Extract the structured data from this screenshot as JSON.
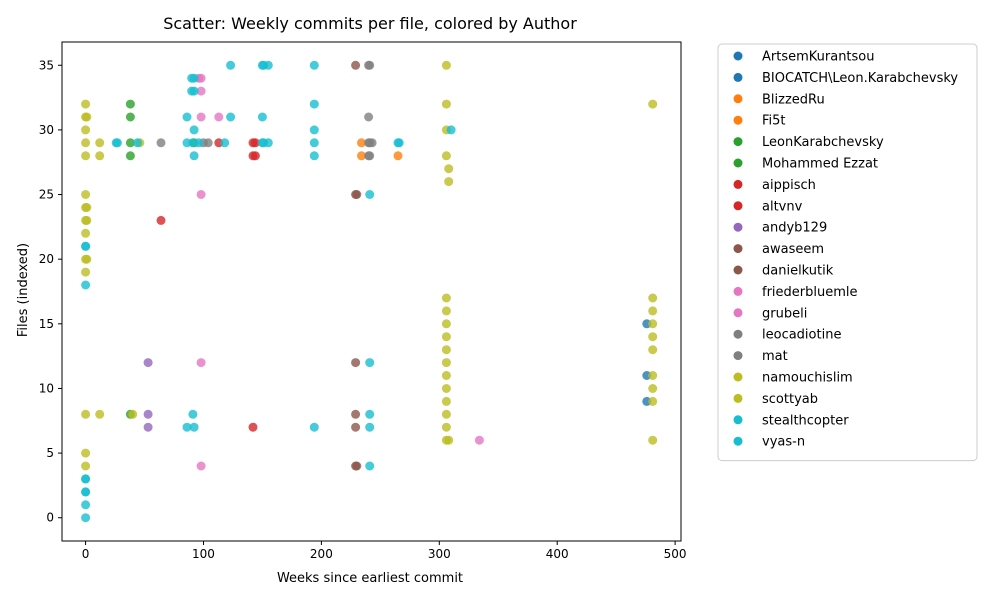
{
  "chart_data": {
    "type": "scatter",
    "title": "Scatter: Weekly commits per file, colored by Author",
    "xlabel": "Weeks since earliest commit",
    "ylabel": "Files (indexed)",
    "xlim": [
      -20,
      505
    ],
    "ylim": [
      -1.8,
      36.8
    ],
    "xticks": [
      0,
      100,
      200,
      300,
      400,
      500
    ],
    "yticks": [
      0,
      5,
      10,
      15,
      20,
      25,
      30,
      35
    ],
    "grid": false,
    "legend_position": "outside-right",
    "series": [
      {
        "name": "ArtsemKurantsou",
        "color": "#1f77b4",
        "points": []
      },
      {
        "name": "BIOCATCH\\Leon.Karabchevsky",
        "color": "#1f77b4",
        "points": [
          [
            476,
            15
          ],
          [
            476,
            11
          ],
          [
            476,
            9
          ]
        ]
      },
      {
        "name": "BlizzedRu",
        "color": "#ff7f0e",
        "points": [
          [
            234,
            29
          ],
          [
            234,
            28
          ]
        ]
      },
      {
        "name": "Fi5t",
        "color": "#ff7f0e",
        "points": [
          [
            265,
            28
          ]
        ]
      },
      {
        "name": "LeonKarabchevsky",
        "color": "#2ca02c",
        "points": [
          [
            38,
            32
          ],
          [
            38,
            31
          ],
          [
            38,
            29
          ],
          [
            38,
            28
          ],
          [
            38,
            8
          ]
        ]
      },
      {
        "name": "Mohammed Ezzat",
        "color": "#2ca02c",
        "points": [
          [
            92,
            29
          ]
        ]
      },
      {
        "name": "aippisch",
        "color": "#d62728",
        "points": [
          [
            142,
            29
          ],
          [
            142,
            28
          ],
          [
            142,
            7
          ],
          [
            64,
            23
          ]
        ]
      },
      {
        "name": "altvnv",
        "color": "#d62728",
        "points": [
          [
            144,
            29
          ],
          [
            144,
            28
          ],
          [
            113,
            29
          ]
        ]
      },
      {
        "name": "andyb129",
        "color": "#9467bd",
        "points": [
          [
            53,
            12
          ],
          [
            53,
            8
          ],
          [
            53,
            7
          ]
        ]
      },
      {
        "name": "awaseem",
        "color": "#8c564b",
        "points": [
          [
            229,
            35
          ],
          [
            229,
            25
          ],
          [
            229,
            12
          ],
          [
            229,
            8
          ],
          [
            229,
            7
          ],
          [
            229,
            4
          ]
        ]
      },
      {
        "name": "danielkutik",
        "color": "#8c564b",
        "points": [
          [
            230,
            25
          ],
          [
            230,
            4
          ]
        ]
      },
      {
        "name": "friederbluemle",
        "color": "#e377c2",
        "points": [
          [
            98,
            34
          ],
          [
            98,
            33
          ],
          [
            98,
            31
          ],
          [
            98,
            25
          ],
          [
            98,
            12
          ],
          [
            98,
            4
          ],
          [
            113,
            31
          ],
          [
            334,
            6
          ]
        ]
      },
      {
        "name": "grubeli",
        "color": "#e377c2",
        "points": [
          [
            96,
            34
          ]
        ]
      },
      {
        "name": "leocadiotine",
        "color": "#7f7f7f",
        "points": [
          [
            64,
            29
          ],
          [
            100,
            29
          ],
          [
            104,
            29
          ],
          [
            240,
            35
          ],
          [
            240,
            31
          ],
          [
            240,
            29
          ],
          [
            240,
            28
          ]
        ]
      },
      {
        "name": "mat",
        "color": "#7f7f7f",
        "points": [
          [
            241,
            35
          ],
          [
            241,
            29
          ],
          [
            241,
            28
          ],
          [
            243,
            29
          ]
        ]
      },
      {
        "name": "namouchislim",
        "color": "#bcbd22",
        "points": [
          [
            0,
            32
          ],
          [
            0,
            31
          ],
          [
            0,
            30
          ],
          [
            0,
            29
          ],
          [
            0,
            28
          ],
          [
            0,
            25
          ],
          [
            0,
            24
          ],
          [
            0,
            23
          ],
          [
            0,
            22
          ],
          [
            0,
            20
          ],
          [
            0,
            19
          ],
          [
            0,
            8
          ],
          [
            0,
            5
          ],
          [
            0,
            4
          ],
          [
            12,
            29
          ],
          [
            12,
            28
          ],
          [
            12,
            8
          ],
          [
            40,
            8
          ],
          [
            46,
            29
          ],
          [
            306,
            35
          ],
          [
            306,
            32
          ],
          [
            306,
            30
          ],
          [
            306,
            28
          ],
          [
            306,
            17
          ],
          [
            306,
            16
          ],
          [
            306,
            15
          ],
          [
            306,
            14
          ],
          [
            306,
            13
          ],
          [
            306,
            12
          ],
          [
            306,
            11
          ],
          [
            306,
            10
          ],
          [
            306,
            9
          ],
          [
            306,
            8
          ],
          [
            306,
            7
          ],
          [
            306,
            6
          ],
          [
            308,
            27
          ],
          [
            308,
            26
          ],
          [
            308,
            6
          ]
        ]
      },
      {
        "name": "scottyab",
        "color": "#bcbd22",
        "points": [
          [
            481,
            32
          ],
          [
            481,
            17
          ],
          [
            481,
            16
          ],
          [
            481,
            15
          ],
          [
            481,
            14
          ],
          [
            481,
            13
          ],
          [
            481,
            11
          ],
          [
            481,
            10
          ],
          [
            481,
            9
          ],
          [
            481,
            6
          ],
          [
            1,
            31
          ],
          [
            1,
            24
          ],
          [
            1,
            23
          ],
          [
            1,
            20
          ]
        ]
      },
      {
        "name": "stealthcopter",
        "color": "#17becf",
        "points": [
          [
            0,
            21
          ],
          [
            0,
            18
          ],
          [
            0,
            3
          ],
          [
            0,
            2
          ],
          [
            0,
            1
          ],
          [
            0,
            0
          ],
          [
            26,
            29
          ],
          [
            44,
            29
          ],
          [
            86,
            31
          ],
          [
            86,
            29
          ],
          [
            86,
            7
          ],
          [
            90,
            34
          ],
          [
            90,
            33
          ],
          [
            91,
            29
          ],
          [
            91,
            8
          ],
          [
            92,
            30
          ],
          [
            92,
            28
          ],
          [
            92,
            7
          ],
          [
            96,
            29
          ],
          [
            118,
            29
          ],
          [
            123,
            35
          ],
          [
            123,
            31
          ],
          [
            150,
            35
          ],
          [
            150,
            31
          ],
          [
            150,
            29
          ],
          [
            155,
            35
          ],
          [
            155,
            29
          ],
          [
            194,
            35
          ],
          [
            194,
            32
          ],
          [
            194,
            30
          ],
          [
            194,
            29
          ],
          [
            194,
            28
          ],
          [
            194,
            7
          ],
          [
            241,
            25
          ],
          [
            241,
            12
          ],
          [
            241,
            8
          ],
          [
            241,
            7
          ],
          [
            241,
            4
          ],
          [
            265,
            29
          ]
        ]
      },
      {
        "name": "vyas-n",
        "color": "#17becf",
        "points": [
          [
            0,
            21
          ],
          [
            0,
            3
          ],
          [
            0,
            2
          ],
          [
            27,
            29
          ],
          [
            92,
            33
          ],
          [
            92,
            34
          ],
          [
            151,
            35
          ],
          [
            151,
            29
          ],
          [
            310,
            30
          ],
          [
            266,
            29
          ]
        ]
      }
    ]
  }
}
